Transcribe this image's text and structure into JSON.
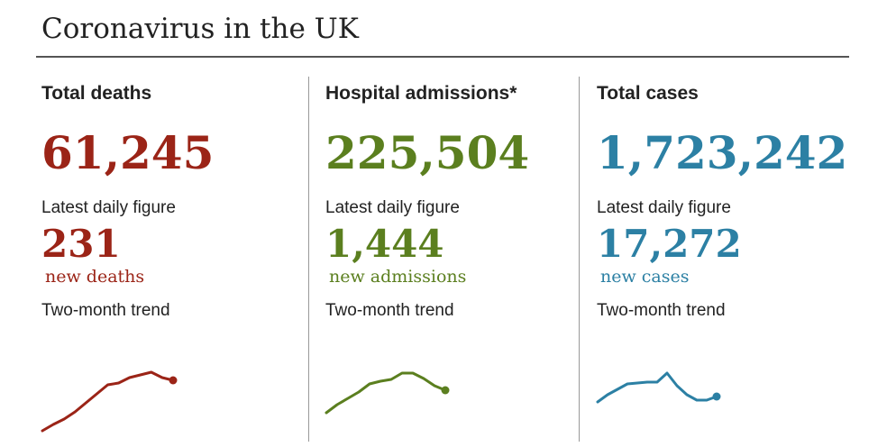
{
  "title": "Coronavirus in the UK",
  "panels": [
    {
      "heading": "Total deaths",
      "total": "61,245",
      "daily_label": "Latest daily figure",
      "daily": "231",
      "unit": "new deaths",
      "trend_label": "Two-month trend",
      "color": "#9b2417",
      "trend": [
        2,
        9,
        15,
        23,
        33,
        43,
        53,
        55,
        61,
        64,
        67,
        61,
        58
      ]
    },
    {
      "heading": "Hospital admissions*",
      "total": "225,504",
      "daily_label": "Latest daily figure",
      "daily": "1,444",
      "unit": "new admissions",
      "trend_label": "Two-month trend",
      "color": "#5b7f1f",
      "trend": [
        22,
        31,
        38,
        45,
        54,
        57,
        59,
        66,
        66,
        60,
        52,
        47
      ]
    },
    {
      "heading": "Total cases",
      "total": "1,723,242",
      "daily_label": "Latest daily figure",
      "daily": "17,272",
      "unit": "new cases",
      "trend_label": "Two-month trend",
      "color": "#2c80a4",
      "trend": [
        34,
        42,
        48,
        54,
        55,
        56,
        56,
        66,
        52,
        42,
        36,
        36,
        40
      ]
    }
  ]
}
